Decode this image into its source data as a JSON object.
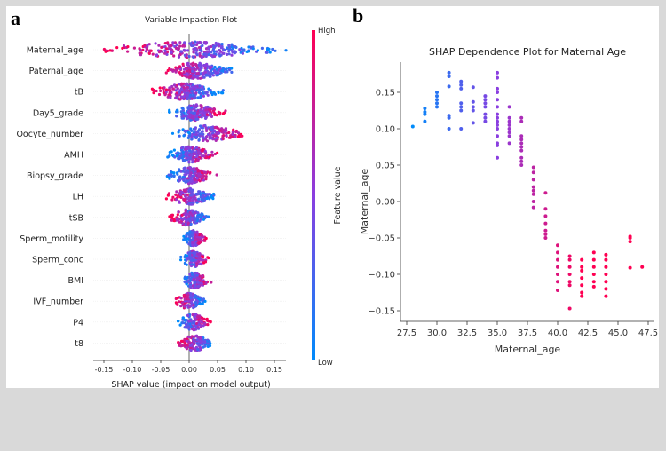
{
  "panel_labels": {
    "a": "a",
    "b": "b"
  },
  "colors": {
    "low": "#008bfb",
    "high": "#ff0052",
    "background": "#d9d9d9"
  },
  "chart_data": [
    {
      "type": "scatter",
      "subtype": "beeswarm",
      "title": "Variable Impaction Plot",
      "xlabel": "SHAP value (impact on model output)",
      "xlim": [
        -0.16,
        0.19
      ],
      "xticks": [
        "-0.15",
        "-0.10",
        "-0.05",
        "0.00",
        "0.05",
        "0.10",
        "0.15"
      ],
      "colorbar": {
        "label": "Feature value",
        "high": "High",
        "low": "Low"
      },
      "features": [
        {
          "name": "Maternal_age",
          "min": -0.15,
          "max": 0.175,
          "high_side": "left",
          "n": 260
        },
        {
          "name": "Paternal_age",
          "min": -0.045,
          "max": 0.08,
          "high_side": "left",
          "n": 200
        },
        {
          "name": "tB",
          "min": -0.065,
          "max": 0.06,
          "high_side": "left",
          "n": 220
        },
        {
          "name": "Day5_grade",
          "min": -0.035,
          "max": 0.065,
          "high_side": "right",
          "n": 180
        },
        {
          "name": "Oocyte_number",
          "min": -0.03,
          "max": 0.105,
          "high_side": "right",
          "n": 170
        },
        {
          "name": "AMH",
          "min": -0.04,
          "max": 0.05,
          "high_side": "right",
          "n": 170
        },
        {
          "name": "Biopsy_grade",
          "min": -0.04,
          "max": 0.05,
          "high_side": "right",
          "n": 170
        },
        {
          "name": "LH",
          "min": -0.04,
          "max": 0.05,
          "high_side": "left",
          "n": 150
        },
        {
          "name": "tSB",
          "min": -0.035,
          "max": 0.035,
          "high_side": "left",
          "n": 150
        },
        {
          "name": "Sperm_motility",
          "min": -0.01,
          "max": 0.03,
          "high_side": "right",
          "n": 130
        },
        {
          "name": "Sperm_conc",
          "min": -0.015,
          "max": 0.035,
          "high_side": "right",
          "n": 130
        },
        {
          "name": "BMI",
          "min": -0.015,
          "max": 0.04,
          "high_side": "right",
          "n": 130
        },
        {
          "name": "IVF_number",
          "min": -0.025,
          "max": 0.03,
          "high_side": "left",
          "n": 120
        },
        {
          "name": "P4",
          "min": -0.02,
          "max": 0.04,
          "high_side": "right",
          "n": 120
        },
        {
          "name": "t8",
          "min": -0.02,
          "max": 0.045,
          "high_side": "left",
          "n": 130
        }
      ]
    },
    {
      "type": "scatter",
      "title": "SHAP Dependence Plot for Maternal Age",
      "xlabel": "Maternal_age",
      "ylabel": "Maternal_age",
      "xlim": [
        27,
        48
      ],
      "ylim": [
        -0.16,
        0.19
      ],
      "xticks": [
        "27.5",
        "30.0",
        "32.5",
        "35.0",
        "37.5",
        "40.0",
        "42.5",
        "45.0",
        "47.5"
      ],
      "yticks": [
        "0.15",
        "0.10",
        "0.05",
        "0.00",
        "−0.05",
        "−0.10",
        "−0.15"
      ],
      "points": [
        {
          "x": 28,
          "y": [
            0.103
          ]
        },
        {
          "x": 29,
          "y": [
            0.11,
            0.12,
            0.123,
            0.128
          ]
        },
        {
          "x": 30,
          "y": [
            0.13,
            0.135,
            0.14,
            0.145,
            0.15
          ]
        },
        {
          "x": 31,
          "y": [
            0.1,
            0.115,
            0.118,
            0.158,
            0.172,
            0.177
          ]
        },
        {
          "x": 32,
          "y": [
            0.1,
            0.125,
            0.13,
            0.135,
            0.155,
            0.16,
            0.165
          ]
        },
        {
          "x": 33,
          "y": [
            0.108,
            0.125,
            0.13,
            0.137,
            0.157
          ]
        },
        {
          "x": 34,
          "y": [
            0.11,
            0.115,
            0.12,
            0.13,
            0.135,
            0.14,
            0.145
          ]
        },
        {
          "x": 35,
          "y": [
            0.06,
            0.077,
            0.08,
            0.09,
            0.1,
            0.105,
            0.11,
            0.115,
            0.12,
            0.13,
            0.14,
            0.15,
            0.155,
            0.17,
            0.177
          ]
        },
        {
          "x": 36,
          "y": [
            0.08,
            0.09,
            0.095,
            0.1,
            0.105,
            0.11,
            0.115,
            0.13
          ]
        },
        {
          "x": 37,
          "y": [
            0.05,
            0.055,
            0.06,
            0.07,
            0.075,
            0.08,
            0.085,
            0.09,
            0.11,
            0.115
          ]
        },
        {
          "x": 38,
          "y": [
            -0.008,
            0,
            0.01,
            0.015,
            0.02,
            0.03,
            0.04,
            0.047
          ]
        },
        {
          "x": 39,
          "y": [
            -0.05,
            -0.045,
            -0.04,
            -0.03,
            -0.02,
            -0.01,
            0.012
          ]
        },
        {
          "x": 40,
          "y": [
            -0.122,
            -0.11,
            -0.1,
            -0.09,
            -0.08,
            -0.07,
            -0.06
          ]
        },
        {
          "x": 41,
          "y": [
            -0.147,
            -0.115,
            -0.11,
            -0.1,
            -0.09,
            -0.08,
            -0.075
          ]
        },
        {
          "x": 42,
          "y": [
            -0.13,
            -0.125,
            -0.115,
            -0.105,
            -0.095,
            -0.09,
            -0.08
          ]
        },
        {
          "x": 43,
          "y": [
            -0.117,
            -0.11,
            -0.1,
            -0.09,
            -0.08,
            -0.07
          ]
        },
        {
          "x": 44,
          "y": [
            -0.13,
            -0.12,
            -0.11,
            -0.1,
            -0.09,
            -0.08,
            -0.073
          ]
        },
        {
          "x": 46,
          "y": [
            -0.091,
            -0.055,
            -0.05,
            -0.048
          ]
        },
        {
          "x": 47,
          "y": [
            -0.09
          ]
        }
      ]
    }
  ]
}
